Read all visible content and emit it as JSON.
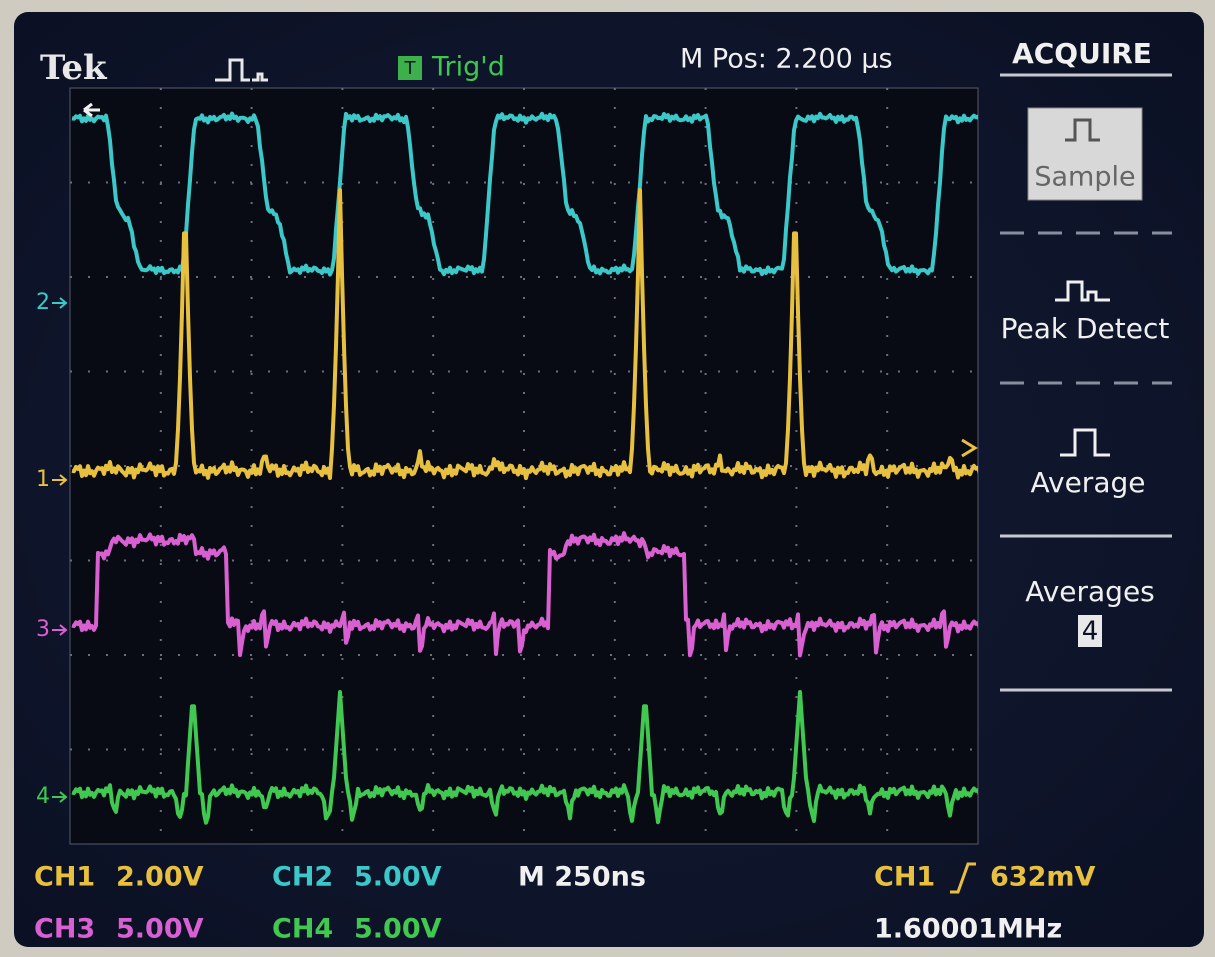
{
  "header": {
    "brand": "Tek",
    "trigger_icon": "T",
    "trigger_status": "Trig'd",
    "position": "M Pos: 2.200 μs"
  },
  "channel_markers": [
    "2",
    "1",
    "3",
    "4"
  ],
  "menu": {
    "title": "ACQUIRE",
    "options": [
      "Sample",
      "Peak Detect",
      "Average"
    ],
    "averages_label": "Averages",
    "averages_value": "4"
  },
  "status": {
    "ch1_label": "CH1",
    "ch1_scale": "2.00V",
    "ch2_label": "CH2",
    "ch2_scale": "5.00V",
    "timebase": "M 250ns",
    "trigger_source": "CH1",
    "trigger_level": "632mV",
    "ch3_label": "CH3",
    "ch3_scale": "5.00V",
    "ch4_label": "CH4",
    "ch4_scale": "5.00V",
    "frequency": "1.60001MHz"
  }
}
